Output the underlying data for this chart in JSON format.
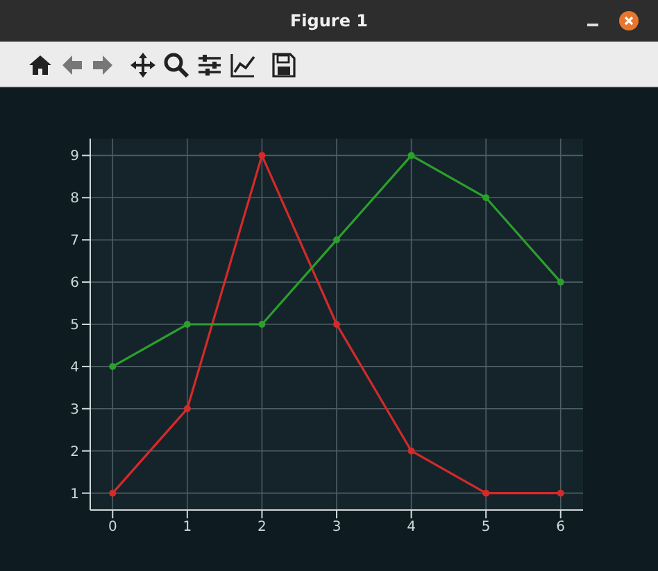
{
  "chart_data": {
    "type": "line",
    "title": "Figure 1",
    "x": [
      0,
      1,
      2,
      3,
      4,
      5,
      6
    ],
    "series": [
      {
        "color": "#d42a2a",
        "values": [
          1,
          3,
          9,
          5,
          2,
          1,
          1
        ]
      },
      {
        "color": "#2ca02c",
        "values": [
          4,
          5,
          5,
          7,
          9,
          8,
          6
        ]
      }
    ],
    "xlim": [
      -0.3,
      6.3
    ],
    "xticks": [
      0,
      1,
      2,
      3,
      4,
      5,
      6
    ],
    "ylim": [
      0.6,
      9.4
    ],
    "yticks": [
      1,
      2,
      3,
      4,
      5,
      6,
      7,
      8,
      9
    ],
    "grid": true,
    "marker": "circle",
    "line_style": "solid"
  }
}
